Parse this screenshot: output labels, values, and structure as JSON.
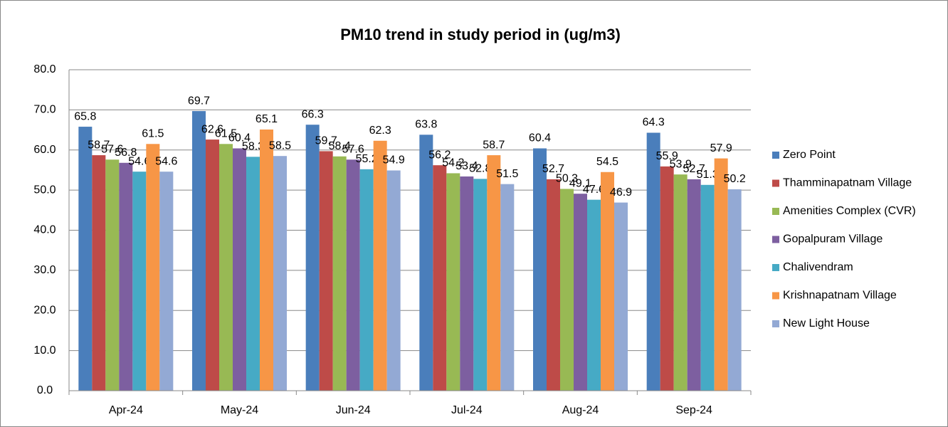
{
  "chart_data": {
    "type": "bar",
    "title": "PM10 trend in study period in (ug/m3)",
    "categories": [
      "Apr-24",
      "May-24",
      "Jun-24",
      "Jul-24",
      "Aug-24",
      "Sep-24"
    ],
    "series": [
      {
        "name": "Zero Point",
        "color": "#4a7ebb",
        "values": [
          65.8,
          69.7,
          66.3,
          63.8,
          60.4,
          64.3
        ]
      },
      {
        "name": "Thamminapatnam Village",
        "color": "#be4b48",
        "values": [
          58.7,
          62.6,
          59.7,
          56.2,
          52.7,
          55.9
        ]
      },
      {
        "name": "Amenities Complex (CVR)",
        "color": "#98b954",
        "values": [
          57.6,
          61.5,
          58.4,
          54.2,
          50.3,
          53.9
        ]
      },
      {
        "name": "Gopalpuram Village",
        "color": "#7d5fa0",
        "values": [
          56.8,
          60.4,
          57.6,
          53.4,
          49.1,
          52.7
        ]
      },
      {
        "name": "Chalivendram",
        "color": "#46aac5",
        "values": [
          54.6,
          58.3,
          55.2,
          52.8,
          47.6,
          51.3
        ]
      },
      {
        "name": "Krishnapatnam Village",
        "color": "#f79646",
        "values": [
          61.5,
          65.1,
          62.3,
          58.7,
          54.5,
          57.9
        ]
      },
      {
        "name": "New Light House",
        "color": "#93a9d4",
        "values": [
          54.6,
          58.5,
          54.9,
          51.5,
          46.9,
          50.2
        ]
      }
    ],
    "ylim": [
      0,
      80
    ],
    "yticks": [
      {
        "value": 0,
        "label": "0.0"
      },
      {
        "value": 10,
        "label": "10.0"
      },
      {
        "value": 20,
        "label": "20.0"
      },
      {
        "value": 30,
        "label": "30.0"
      },
      {
        "value": 40,
        "label": "40.0"
      },
      {
        "value": 50,
        "label": "50.0"
      },
      {
        "value": 60,
        "label": "60.0"
      },
      {
        "value": 70,
        "label": "70.0"
      },
      {
        "value": 80,
        "label": "80.0"
      }
    ],
    "grid": true,
    "legend": "right"
  }
}
